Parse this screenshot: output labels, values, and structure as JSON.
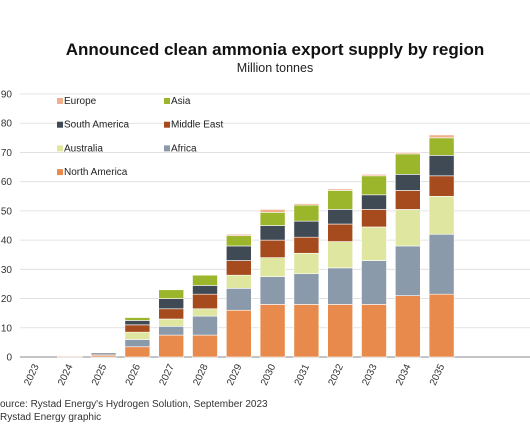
{
  "header": {
    "title": "Announced clean ammonia export supply by region",
    "subtitle": "Million tonnes"
  },
  "footer": {
    "source_line": "ource: Rystad Energy's Hydrogen Solution, September 2023",
    "graphic_line": "Rystad Energy graphic"
  },
  "chart_data": {
    "type": "bar",
    "stacked": true,
    "title": "Announced clean ammonia export supply by region",
    "subtitle": "Million tonnes",
    "categories": [
      "2023",
      "2024",
      "2025",
      "2026",
      "2027",
      "2028",
      "2029",
      "2030",
      "2031",
      "2032",
      "2033",
      "2034",
      "2035"
    ],
    "ylim": [
      0,
      90
    ],
    "yticks": [
      0,
      10,
      20,
      30,
      40,
      50,
      60,
      70,
      80,
      90
    ],
    "grid": true,
    "legend_position": "top-left",
    "series": [
      {
        "name": "North America",
        "color": "#e98a4d",
        "values": [
          0,
          0.3,
          0.5,
          3.5,
          7.5,
          7.5,
          16,
          18,
          18,
          18,
          18,
          21,
          21.5
        ]
      },
      {
        "name": "Africa",
        "color": "#8a9aaa",
        "values": [
          0,
          0,
          0,
          2.5,
          3,
          6.5,
          7.5,
          9.5,
          10.5,
          12.5,
          15,
          17,
          20.5
        ]
      },
      {
        "name": "Australia",
        "color": "#dfe6a0",
        "values": [
          0,
          0,
          0,
          2.5,
          2.5,
          2.5,
          4.5,
          6.5,
          7,
          9,
          11.5,
          12.5,
          13
        ]
      },
      {
        "name": "Middle East",
        "color": "#a64b1e",
        "values": [
          0,
          0.2,
          0.3,
          2.5,
          3.5,
          5,
          5,
          6,
          5.5,
          6,
          6,
          6.5,
          7
        ]
      },
      {
        "name": "South America",
        "color": "#3f4a54",
        "values": [
          0,
          0,
          0.5,
          1.5,
          3.5,
          3,
          5,
          5,
          5.5,
          5,
          5,
          5.5,
          7
        ]
      },
      {
        "name": "Asia",
        "color": "#9bb62a",
        "values": [
          0,
          0,
          0,
          1,
          3,
          3.5,
          3.5,
          4.5,
          5.5,
          6.5,
          6.5,
          7,
          6
        ]
      },
      {
        "name": "Europe",
        "color": "#f0b08c",
        "values": [
          0,
          0,
          0,
          0,
          0,
          0,
          0.5,
          1,
          0.5,
          0.5,
          0.5,
          0.5,
          1
        ]
      }
    ],
    "legend_order": [
      "Europe",
      "Asia",
      "South America",
      "Middle East",
      "Australia",
      "Africa",
      "North America"
    ]
  }
}
